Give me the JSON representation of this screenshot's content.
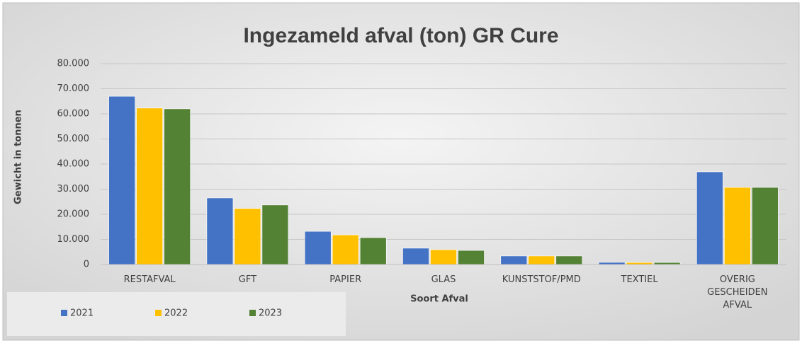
{
  "chart_data": {
    "type": "bar",
    "title": "Ingezameld afval (ton) GR Cure",
    "y_label": "Gewicht in tonnen",
    "x_label": "Soort Afval",
    "categories": [
      "RESTAFVAL",
      "GFT",
      "PAPIER",
      "GLAS",
      "KUNSTSTOF/PMD",
      "TEXTIEL",
      "OVERIG GESCHEIDEN AFVAL"
    ],
    "series": [
      {
        "name": "2021",
        "color": "#4472c4",
        "values": [
          67000,
          26500,
          13200,
          6500,
          3400,
          850,
          36900
        ]
      },
      {
        "name": "2022",
        "color": "#ffc000",
        "values": [
          62300,
          22300,
          11800,
          5900,
          3400,
          800,
          30700
        ]
      },
      {
        "name": "2023",
        "color": "#548235",
        "values": [
          62000,
          23700,
          10700,
          5600,
          3400,
          800,
          30700
        ]
      }
    ],
    "ylim": [
      0,
      80000
    ],
    "yticks": [
      0,
      {
        "value": 10000,
        "label": "10.000"
      },
      {
        "value": 20000,
        "label": "20.000"
      },
      {
        "value": 30000,
        "label": "30.000"
      },
      {
        "value": 40000,
        "label": "40.000"
      },
      {
        "value": 50000,
        "label": "50.000"
      },
      {
        "value": 60000,
        "label": "60.000"
      },
      {
        "value": 70000,
        "label": "70.000"
      },
      {
        "value": 80000,
        "label": "80.000"
      }
    ],
    "grid": true,
    "legend": "bottom-left"
  }
}
